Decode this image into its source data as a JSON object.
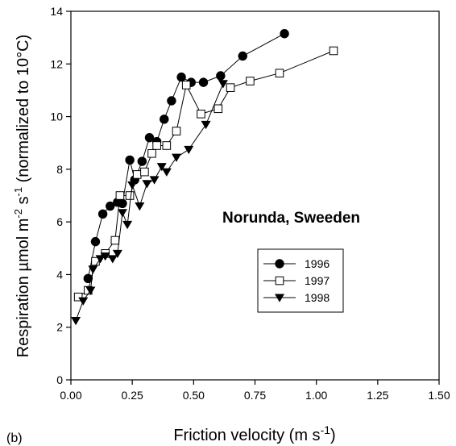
{
  "chart_data": {
    "type": "line",
    "title": "",
    "panel_label": "(b)",
    "annotation": "Norunda, Sweeden",
    "xlabel": {
      "text": "Friction velocity (m s",
      "sup": "-1",
      "close": ")"
    },
    "ylabel": {
      "p1": "Respiration µmol m",
      "sup1": "-2",
      "p2": " s",
      "sup2": "-1",
      "p3": " (normalized to 10°C)"
    },
    "xlim": [
      0,
      1.5
    ],
    "ylim": [
      0,
      14
    ],
    "xticks": [
      0,
      0.25,
      0.5,
      0.75,
      1.0,
      1.25,
      1.5
    ],
    "xtick_labels": [
      "0.00",
      "0.25",
      "0.50",
      "0.75",
      "1.00",
      "1.25",
      "1.50"
    ],
    "yticks": [
      0,
      2,
      4,
      6,
      8,
      10,
      12,
      14
    ],
    "ytick_labels": [
      "0",
      "2",
      "4",
      "6",
      "8",
      "10",
      "12",
      "14"
    ],
    "grid": false,
    "legend_position": "center-right",
    "series": [
      {
        "name": "1996",
        "marker": "filled-circle",
        "x": [
          0.07,
          0.1,
          0.13,
          0.16,
          0.19,
          0.21,
          0.24,
          0.26,
          0.29,
          0.32,
          0.35,
          0.38,
          0.41,
          0.45,
          0.49,
          0.54,
          0.61,
          0.7,
          0.87
        ],
        "y": [
          3.85,
          5.25,
          6.3,
          6.6,
          6.75,
          6.7,
          8.35,
          7.6,
          8.3,
          9.2,
          9.05,
          9.9,
          10.6,
          11.5,
          11.3,
          11.3,
          11.55,
          12.3,
          13.15
        ]
      },
      {
        "name": "1997",
        "marker": "open-square",
        "x": [
          0.03,
          0.07,
          0.1,
          0.14,
          0.18,
          0.2,
          0.24,
          0.27,
          0.3,
          0.33,
          0.35,
          0.39,
          0.43,
          0.47,
          0.53,
          0.6,
          0.65,
          0.73,
          0.85,
          1.07
        ],
        "y": [
          3.15,
          3.4,
          4.5,
          4.8,
          5.3,
          7.0,
          7.0,
          7.8,
          7.9,
          8.6,
          8.9,
          8.9,
          9.45,
          11.2,
          10.1,
          10.3,
          11.1,
          11.35,
          11.65,
          12.5
        ]
      },
      {
        "name": "1998",
        "marker": "filled-triangle-down",
        "x": [
          0.02,
          0.05,
          0.08,
          0.09,
          0.12,
          0.14,
          0.17,
          0.19,
          0.21,
          0.23,
          0.25,
          0.28,
          0.31,
          0.34,
          0.37,
          0.39,
          0.43,
          0.48,
          0.55,
          0.62
        ],
        "y": [
          2.25,
          3.0,
          3.4,
          4.2,
          4.6,
          4.7,
          4.6,
          4.8,
          6.35,
          5.9,
          7.4,
          6.6,
          7.45,
          7.6,
          8.1,
          7.9,
          8.45,
          8.75,
          9.7,
          11.25
        ]
      }
    ]
  }
}
